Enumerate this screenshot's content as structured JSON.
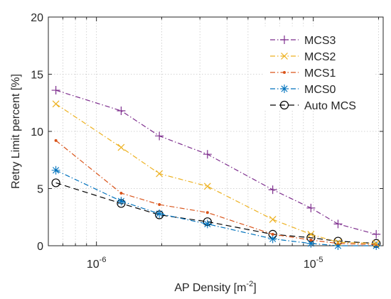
{
  "chart_data": {
    "type": "line",
    "xlabel": "AP Density [m",
    "xlabel_exponent": "-2",
    "xlabel_suffix": "]",
    "ylabel": "Retry Limit percent [%]",
    "xscale": "log",
    "xlim": [
      6e-07,
      2.1e-05
    ],
    "ylim": [
      0,
      20
    ],
    "grid": true,
    "legend_position": "top-right",
    "y_ticks": [
      {
        "value": 0,
        "label": "0"
      },
      {
        "value": 5,
        "label": "5"
      },
      {
        "value": 10,
        "label": "10"
      },
      {
        "value": 15,
        "label": "15"
      },
      {
        "value": 20,
        "label": "20"
      }
    ],
    "x_ticks": [
      {
        "value": 1e-06,
        "base": "10",
        "exp": "-6"
      },
      {
        "value": 1e-05,
        "base": "10",
        "exp": "-5"
      }
    ],
    "x": [
      6.5e-07,
      1.3e-06,
      1.95e-06,
      3.25e-06,
      6.5e-06,
      9.75e-06,
      1.3e-05,
      1.95e-05
    ],
    "series": [
      {
        "name": "MCS3",
        "color": "#7E2F8E",
        "marker": "plus",
        "dash": "dashdot",
        "values": [
          13.6,
          11.8,
          9.6,
          8.0,
          4.9,
          3.3,
          1.9,
          1.0
        ]
      },
      {
        "name": "MCS2",
        "color": "#EDB120",
        "marker": "x",
        "dash": "dashdot",
        "values": [
          12.4,
          8.6,
          6.3,
          5.2,
          2.3,
          1.0,
          0.3,
          0.2
        ]
      },
      {
        "name": "MCS1",
        "color": "#D95319",
        "marker": "dot",
        "dash": "dashdot",
        "values": [
          9.2,
          4.6,
          3.6,
          2.9,
          1.0,
          0.5,
          0.2,
          0.1
        ]
      },
      {
        "name": "MCS0",
        "color": "#0072BD",
        "marker": "asterisk",
        "dash": "dashdot",
        "values": [
          6.6,
          3.9,
          2.8,
          1.9,
          0.6,
          0.2,
          0.0,
          0.0
        ]
      },
      {
        "name": "Auto MCS",
        "color": "#000000",
        "marker": "circle",
        "dash": "dashed",
        "values": [
          5.5,
          3.7,
          2.7,
          2.1,
          1.0,
          0.7,
          0.4,
          0.2
        ]
      }
    ]
  }
}
